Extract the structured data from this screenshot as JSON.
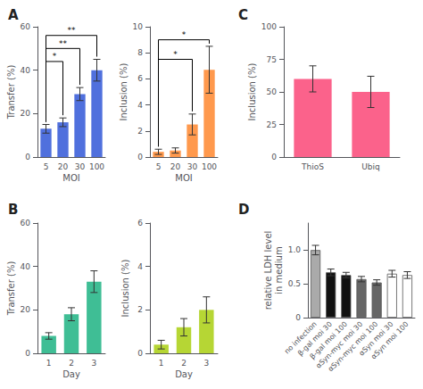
{
  "chart_data": [
    {
      "type": "bar",
      "title": "A",
      "categories": [
        "5",
        "20",
        "30",
        "100"
      ],
      "values": [
        13,
        16,
        29,
        40
      ],
      "errors": [
        2,
        2,
        3,
        5
      ],
      "xlabel": "MOI",
      "ylabel": "Transfer (%)",
      "ylim": [
        0,
        60
      ],
      "yticks": [
        0,
        20,
        40,
        60
      ],
      "grid": false,
      "annotations": [
        {
          "text": "*",
          "from": "5",
          "to": "20",
          "y": 44
        },
        {
          "text": "**",
          "from": "5",
          "to": "30",
          "y": 50
        },
        {
          "text": "**",
          "from": "5",
          "to": "100",
          "y": 56
        }
      ]
    },
    {
      "type": "bar",
      "categories": [
        "5",
        "20",
        "30",
        "100"
      ],
      "values": [
        0.4,
        0.5,
        2.5,
        6.7
      ],
      "errors": [
        0.2,
        0.2,
        0.8,
        1.8
      ],
      "xlabel": "MOI",
      "ylabel": "Inclusion (%)",
      "ylim": [
        0,
        10
      ],
      "yticks": [
        0,
        2,
        4,
        6,
        8,
        10
      ],
      "grid": false,
      "annotations": [
        {
          "text": "*",
          "from": "5",
          "to": "30",
          "y": 7.5
        },
        {
          "text": "*",
          "from": "5",
          "to": "100",
          "y": 9.0
        }
      ]
    },
    {
      "type": "bar",
      "title": "C",
      "categories": [
        "ThioS",
        "Ubiq"
      ],
      "values": [
        60,
        50
      ],
      "errors": [
        10,
        12
      ],
      "ylabel": "Inclusion (%)",
      "ylim": [
        0,
        100
      ],
      "yticks": [
        0,
        25,
        50,
        75,
        100
      ],
      "grid": false
    },
    {
      "type": "bar",
      "title": "B",
      "categories": [
        "1",
        "2",
        "3"
      ],
      "values": [
        8,
        18,
        33
      ],
      "errors": [
        1.5,
        3,
        5
      ],
      "xlabel": "Day",
      "ylabel": "Transfer (%)",
      "ylim": [
        0,
        60
      ],
      "yticks": [
        0,
        20,
        40,
        60
      ],
      "grid": false
    },
    {
      "type": "bar",
      "categories": [
        "1",
        "2",
        "3"
      ],
      "values": [
        0.4,
        1.2,
        2.0
      ],
      "errors": [
        0.2,
        0.4,
        0.6
      ],
      "xlabel": "Day",
      "ylabel": "Inclusion (%)",
      "ylim": [
        0,
        6
      ],
      "yticks": [
        0,
        2,
        4,
        6
      ],
      "grid": false
    },
    {
      "type": "bar",
      "title": "D",
      "categories": [
        "no infection",
        "β-gal moi 30",
        "β-gal moi 100",
        "αSyn-myc moi 30",
        "αSyn-myc moi 100",
        "αSyn moi 30",
        "αSyn moi 100"
      ],
      "values": [
        1.0,
        0.67,
        0.63,
        0.57,
        0.52,
        0.65,
        0.63
      ],
      "errors": [
        0.07,
        0.05,
        0.04,
        0.04,
        0.04,
        0.05,
        0.05
      ],
      "ylabel": "relative LDH level\nin medium",
      "ylim": [
        0,
        1.4
      ],
      "yticks": [
        0,
        0.5,
        {
          "value": 1.0,
          "label": "1.0"
        }
      ],
      "grid": false,
      "colors": [
        "#aaaaaa",
        "#111111",
        "#111111",
        "#666666",
        "#666666",
        "#ffffff",
        "#ffffff"
      ]
    }
  ]
}
